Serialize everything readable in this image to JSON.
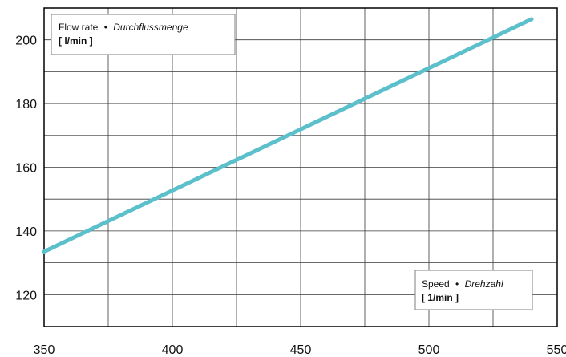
{
  "chart_data": {
    "type": "line",
    "xlim": [
      350,
      550
    ],
    "ylim": [
      110,
      210
    ],
    "x_ticks": [
      350,
      400,
      450,
      500,
      550
    ],
    "y_ticks": [
      120,
      140,
      160,
      180,
      200
    ],
    "grid": true,
    "y_box": {
      "label_en": "Flow rate",
      "separator": "•",
      "label_de": "Durchflussmenge",
      "unit": "[ l/min ]",
      "placement": "top-left"
    },
    "x_box": {
      "label_en": "Speed",
      "separator": "•",
      "label_de": "Drehzahl",
      "unit": "[ 1/min ]",
      "placement": "bottom-right"
    },
    "series": [
      {
        "color": "#5bc0cb",
        "x": [
          350,
          540
        ],
        "y": [
          133.5,
          206.5
        ]
      }
    ]
  }
}
